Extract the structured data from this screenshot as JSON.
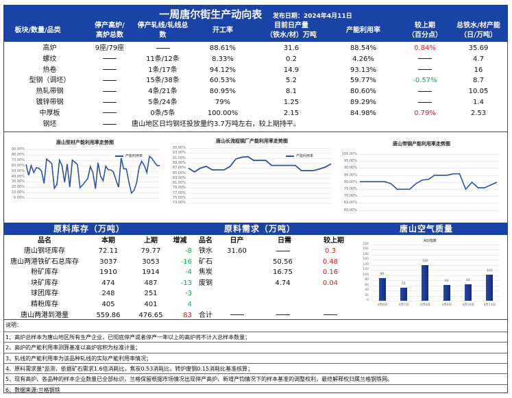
{
  "header": {
    "title": "一周唐尔街生产动向表",
    "publish_label": "发布日期：2024年4月11日",
    "columns": [
      "板块/数量/品类",
      "停产高炉/\n高炉总数",
      "停产轧线/轧线总\n数",
      "开工率",
      "目前日产量\n（铁水/材）万吨",
      "产能利用率",
      "较上期\n（百分点）",
      "总铁水/材产能\n（日/万吨）"
    ]
  },
  "production_rows": [
    {
      "name": "高炉",
      "stopped_bf": "9座/79座",
      "stopped_lines": "—",
      "operating_rate": "88.61%",
      "daily_output": "31.6",
      "utilization": "88.54%",
      "change": "0.84%",
      "change_color": "red",
      "capacity": "35.69"
    },
    {
      "name": "螺纹",
      "stopped_bf": "—",
      "stopped_lines": "11条/12条",
      "operating_rate": "8.33%",
      "daily_output": "0.2",
      "utilization": "4.26%",
      "change": "—",
      "change_color": "",
      "capacity": "4.7"
    },
    {
      "name": "热卷",
      "stopped_bf": "—",
      "stopped_lines": "1条/17条",
      "operating_rate": "94.12%",
      "daily_output": "14.9",
      "utilization": "93.13%",
      "change": "—",
      "change_color": "",
      "capacity": "16"
    },
    {
      "name": "型钢（调坯）",
      "stopped_bf": "—",
      "stopped_lines": "15条/38条",
      "operating_rate": "60.53%",
      "daily_output": "5.2",
      "utilization": "59.77%",
      "change": "-0.57%",
      "change_color": "green",
      "capacity": "8.7"
    },
    {
      "name": "热轧带钢",
      "stopped_bf": "—",
      "stopped_lines": "4条/21条",
      "operating_rate": "80.95%",
      "daily_output": "8.1",
      "utilization": "80.60%",
      "change": "—",
      "change_color": "",
      "capacity": "10.05"
    },
    {
      "name": "镀锌带钢",
      "stopped_bf": "—",
      "stopped_lines": "5条/24条",
      "operating_rate": "79%",
      "daily_output": "1.25",
      "utilization": "89.29%",
      "change": "—",
      "change_color": "",
      "capacity": "1.4"
    },
    {
      "name": "中厚板",
      "stopped_bf": "—",
      "stopped_lines": "0条/5条",
      "operating_rate": "100.00%",
      "daily_output": "2.15",
      "utilization": "84.98%",
      "change": "0.79%",
      "change_color": "red",
      "capacity": "2.53"
    }
  ],
  "billet_row": {
    "name": "钢坯",
    "stopped_bf": "—",
    "note": "唐山地区日均钢坯投放量约3.7万吨左右，较上期持平。"
  },
  "charts": {
    "section_steel": {
      "title": "唐山型材产能利用率走势图",
      "legend": "产能利用率",
      "yticks": [
        "90.00%",
        "80.00%",
        "70.00%",
        "60.00%",
        "50.00%",
        "40.00%",
        "30.00%",
        "20.00%",
        "10.00%",
        "0.00%"
      ]
    },
    "long_process": {
      "title": "唐山长流程钢厂产能利用率走势图",
      "legend": "产能利用率",
      "yticks": [
        "95.00%",
        "93.00%",
        "91.00%",
        "89.00%",
        "87.00%",
        "85.00%",
        "83.00%",
        "81.00%",
        "79.00%",
        "77.00%",
        "75.00%",
        "73.00%"
      ]
    },
    "strip_steel": {
      "title": "唐山带钢产能利用率走势图",
      "yticks": [
        "100.00%",
        "95.00%",
        "90.00%",
        "85.00%",
        "80.00%",
        "75.00%",
        "70.00%",
        "65.00%",
        "60.00%"
      ]
    }
  },
  "chart_data": [
    {
      "type": "line",
      "title": "唐山型材产能利用率走势图",
      "series": [
        {
          "name": "产能利用率",
          "values": [
            62,
            42,
            60,
            47,
            56,
            55,
            50,
            27,
            72,
            68,
            64,
            18,
            25,
            70,
            60,
            29,
            63,
            20,
            70,
            66,
            62,
            19,
            24,
            30,
            36,
            58,
            47,
            17,
            65,
            40,
            32,
            59,
            52,
            52,
            48,
            33,
            20,
            74,
            54,
            54,
            30,
            9,
            14,
            28,
            57,
            68,
            60,
            47,
            77,
            73,
            66,
            60,
            60
          ]
        }
      ],
      "ylim": [
        0,
        90
      ],
      "ylabel": "",
      "xlabel": ""
    },
    {
      "type": "line",
      "title": "唐山长流程钢厂产能利用率走势图",
      "series": [
        {
          "name": "产能利用率",
          "values": [
            86.9,
            85.4,
            86.9,
            87.6,
            86.2,
            86.2,
            86.2,
            87.6,
            90.6,
            91.3,
            91.5,
            90.0,
            90.0,
            90.0,
            88.0,
            88.0,
            88.0,
            88.0,
            88.0,
            85.9,
            85.9,
            85.9,
            86.5,
            87.3,
            88.6
          ]
        }
      ],
      "ylim": [
        73,
        95
      ],
      "ylabel": "",
      "xlabel": ""
    },
    {
      "type": "line",
      "title": "唐山带钢产能利用率走势图",
      "series": [
        {
          "name": "产能利用率",
          "values": [
            80.4,
            80.4,
            80.4,
            80.4,
            80.4,
            79.0,
            75.0,
            75.0,
            75.0,
            79.0,
            81.5,
            82.0,
            85.0,
            85.0,
            85.0,
            86.0,
            86.0,
            75.0,
            80.0,
            76.0,
            76.0,
            78.0,
            80.0
          ]
        }
      ],
      "ylim": [
        60,
        100
      ],
      "ylabel": "",
      "xlabel": ""
    },
    {
      "type": "bar",
      "title": "AQI指数",
      "categories": [
        "4月6日",
        "4月7日",
        "4月8日",
        "4月9日",
        "4月10日",
        "4月11日"
      ],
      "values": [
        89,
        51,
        140,
        63,
        64,
        103
      ],
      "ylim": [
        0,
        220
      ],
      "yticks": [
        0,
        20,
        40,
        60,
        80,
        100,
        120,
        140,
        160,
        180,
        200,
        220
      ]
    }
  ],
  "sections": {
    "inventory_title": "原料库存（万吨）",
    "demand_title": "原料需求（万吨）",
    "air_title": "唐山空气质量"
  },
  "inventory": {
    "headers": [
      "品名",
      "本期",
      "上期",
      "增减"
    ],
    "rows": [
      {
        "name": "唐山钢坯库存",
        "current": "72.11",
        "previous": "79.77",
        "change": "-8",
        "color": "green"
      },
      {
        "name": "唐山两港铁矿石总库存",
        "current": "3037",
        "previous": "3053",
        "change": "-16",
        "color": "green"
      },
      {
        "name": "粉矿库存",
        "current": "1910",
        "previous": "1914",
        "change": "-4",
        "color": "green"
      },
      {
        "name": "块矿库存",
        "current": "474",
        "previous": "487",
        "change": "-13",
        "color": "green"
      },
      {
        "name": "球团库存",
        "current": "248",
        "previous": "251",
        "change": "-3",
        "color": "green"
      },
      {
        "name": "精粉库存",
        "current": "405",
        "previous": "401",
        "change": "4",
        "color": "green"
      },
      {
        "name": "唐山两港到港量",
        "current": "559.86",
        "previous": "476.65",
        "change": "83",
        "color": "red"
      }
    ]
  },
  "demand": {
    "headers": [
      "品名",
      "日产",
      "日需",
      "较上期"
    ],
    "rows": [
      {
        "name": "铁水",
        "daily_output": "31.60",
        "daily_need": "—",
        "change": "0.3"
      },
      {
        "name": "矿石",
        "daily_output": "",
        "daily_need": "50.56",
        "change": "0.48"
      },
      {
        "name": "焦炭",
        "daily_output": "",
        "daily_need": "16.75",
        "change": "0.16"
      },
      {
        "name": "废钢",
        "daily_output": "",
        "daily_need": "4.74",
        "change": "0.04"
      }
    ],
    "total": {
      "name": "合计",
      "daily_output": "—",
      "daily_need": "—",
      "change": "—"
    }
  },
  "air_quality": {
    "chart_title": "AQI指数",
    "yticks": [
      "220",
      "200",
      "180",
      "160",
      "140",
      "120",
      "100",
      "80",
      "60",
      "40",
      "20",
      "0"
    ],
    "bars": [
      {
        "label": "4月6日",
        "value": "89"
      },
      {
        "label": "4月7日",
        "value": "51"
      },
      {
        "label": "4月8日",
        "value": "140"
      },
      {
        "label": "4月9日",
        "value": "63"
      },
      {
        "label": "4月10日",
        "value": "64"
      },
      {
        "label": "4月11日",
        "value": "103"
      }
    ]
  },
  "notes": {
    "title": "说明：",
    "items": [
      "1、高炉总样本为唐山地区所有生产企业，已彻底停产或者停产一年以上的高炉将不计入总样本数量；",
      "2、高炉的产能利用率测算基准以高炉容积为标准计量；",
      "3、轧线的产能利用率为该品种轧线的实际产能利用率情况；",
      "4、原料需求量\"监测，依据矿石需求1.6倍消耗比，焦炭0.53消耗比，转炉废钢0.15消耗比基准核算；",
      "5、现有高炉、各品种的样本企业数量已全部标识，兰格保留根据市场情况出现停产高炉、新增产钧情况下的样本基准的调整权利，最终解释权归属兰格钢铁网。",
      "6、数据来源:兰格钢铁"
    ]
  },
  "colors": {
    "header_blue": "#1943a8",
    "line_blue": "#2d4fa0",
    "red": "#d0202a",
    "green": "#1aa655",
    "bar_blue": "#1a3a96"
  }
}
